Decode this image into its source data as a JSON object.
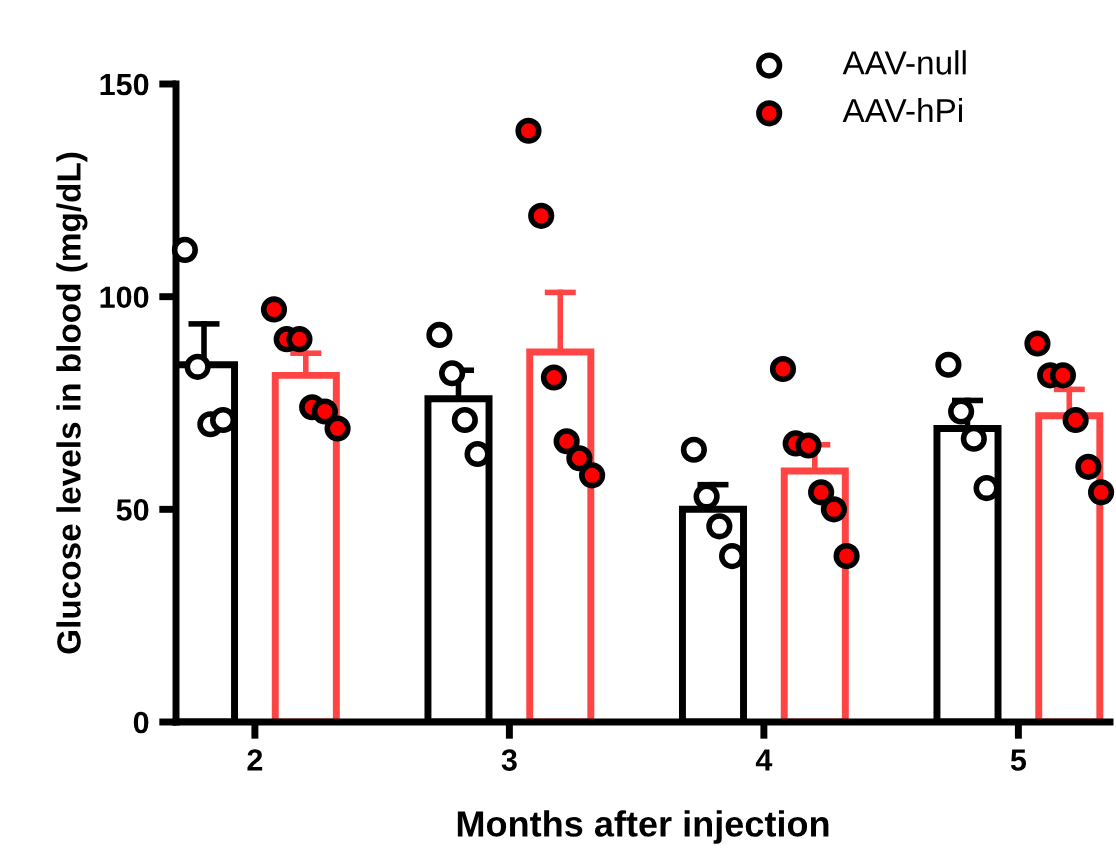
{
  "chart_data": {
    "type": "bar",
    "xlabel": "Months after injection",
    "ylabel": "Glucose levels in blood (mg/dL)",
    "categories": [
      "2",
      "3",
      "4",
      "5"
    ],
    "ylim": [
      0,
      150
    ],
    "yticks": [
      0,
      50,
      100,
      150
    ],
    "grid": false,
    "legend": "top right",
    "marker": "circle",
    "series": [
      {
        "color": "#000000",
        "values": [
          84,
          76,
          50,
          69
        ],
        "errors": [
          [
            84,
            93.6
          ],
          [
            76,
            82.7
          ],
          [
            50,
            55.8
          ],
          [
            69,
            75.6
          ]
        ]
      },
      {
        "color": "#ff4444",
        "values": [
          81.5,
          87,
          59,
          72
        ],
        "errors": [
          [
            81.5,
            86.7
          ],
          [
            87,
            101
          ],
          [
            59,
            65.2
          ],
          [
            72,
            78.2
          ]
        ]
      },
      {
        "type": "scatter",
        "name": "AAV-null",
        "color": "#ffffff",
        "x": [
          "2",
          "2",
          "2",
          "2",
          "3",
          "3",
          "3",
          "3",
          "4",
          "4",
          "4",
          "4",
          "5",
          "5",
          "5",
          "5"
        ],
        "values": [
          111,
          83.5,
          70,
          71,
          91,
          82,
          71,
          63,
          64,
          53,
          46,
          39,
          84,
          73,
          66.6,
          55
        ]
      },
      {
        "type": "scatter",
        "name": "AAV-hPi",
        "color": "#ff0000",
        "x": [
          "2",
          "2",
          "2",
          "2",
          "2",
          "2",
          "3",
          "3",
          "3",
          "3",
          "3",
          "3",
          "4",
          "4",
          "4",
          "4",
          "4",
          "4",
          "5",
          "5",
          "5",
          "5",
          "5",
          "5"
        ],
        "values": [
          97,
          90,
          90,
          74,
          73,
          69,
          139,
          119,
          81,
          66,
          62,
          58,
          83,
          65.5,
          65,
          54,
          50,
          39,
          89,
          81.5,
          81.5,
          71,
          60,
          54
        ]
      }
    ]
  }
}
